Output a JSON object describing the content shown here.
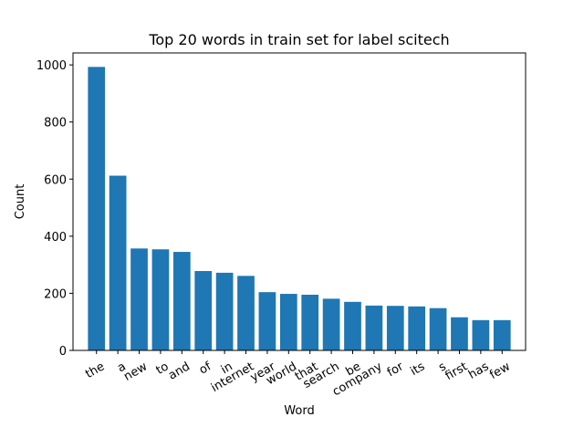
{
  "chart_data": {
    "type": "bar",
    "title": "Top 20 words in train set for label scitech",
    "xlabel": "Word",
    "ylabel": "Count",
    "categories": [
      "the",
      "a",
      "new",
      "to",
      "and",
      "of",
      "in",
      "internet",
      "year",
      "world",
      "that",
      "search",
      "be",
      "company",
      "for",
      "its",
      "s",
      "first",
      "has",
      "few"
    ],
    "values": [
      993,
      612,
      357,
      354,
      345,
      278,
      272,
      261,
      204,
      198,
      195,
      181,
      170,
      157,
      156,
      154,
      148,
      116,
      106,
      106
    ],
    "ylim": [
      0,
      1042
    ],
    "yticks": [
      0,
      200,
      400,
      600,
      800,
      1000
    ],
    "bar_color": "#1f77b4",
    "grid": false,
    "legend": "none"
  }
}
